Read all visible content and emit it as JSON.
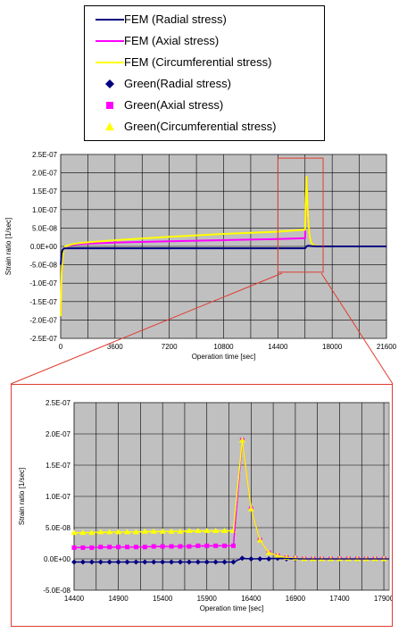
{
  "legend": {
    "entries": [
      {
        "label": "FEM (Radial stress)",
        "color": "#000080",
        "kind": "line"
      },
      {
        "label": "FEM (Axial stress)",
        "color": "#ff00ff",
        "kind": "line"
      },
      {
        "label": "FEM (Circumferential stress)",
        "color": "#ffff00",
        "kind": "line"
      },
      {
        "label": "Green(Radial stress)",
        "color": "#000080",
        "kind": "diamond"
      },
      {
        "label": "Green(Axial stress)",
        "color": "#ff00ff",
        "kind": "square"
      },
      {
        "label": "Green(Circumferential stress)",
        "color": "#ffff00",
        "kind": "triangle"
      }
    ]
  },
  "colors": {
    "plot_bg": "#c0c0c0",
    "grid": "#000000",
    "highlight": "#e03c31"
  },
  "chart_data": [
    {
      "type": "line",
      "title": "",
      "xlabel": "Operation time [sec]",
      "ylabel": "Strain ratio [1/sec]",
      "xlim": [
        0,
        21600
      ],
      "ylim": [
        -2.5e-07,
        2.5e-07
      ],
      "x_ticks": [
        0,
        3600,
        7200,
        10800,
        14400,
        18000,
        21600
      ],
      "x_tick_labels": [
        "0",
        "3600",
        "7200",
        "10800",
        "14400",
        "18000",
        "21600"
      ],
      "y_ticks": [
        -2.5e-07,
        -2e-07,
        -1.5e-07,
        -1e-07,
        -5e-08,
        0,
        5e-08,
        1e-07,
        1.5e-07,
        2e-07,
        2.5e-07
      ],
      "y_tick_labels": [
        "-2.5E-07",
        "-2.0E-07",
        "-1.5E-07",
        "-1.0E-07",
        "-5.0E-08",
        "0.0E+00",
        "5.0E-08",
        "1.0E-07",
        "1.5E-07",
        "2.0E-07",
        "2.5E-07"
      ],
      "grid": true,
      "highlight_box": {
        "x": [
          14400,
          17400
        ],
        "y": [
          -7e-08,
          2.4e-07
        ]
      },
      "series": [
        {
          "name": "FEM (Axial stress)",
          "color": "#ff00ff",
          "x": [
            0,
            60,
            120,
            200,
            300,
            500,
            800,
            1200,
            2000,
            4000,
            7200,
            10800,
            14400,
            16000,
            16200,
            16300,
            16400,
            16500,
            16600,
            16800,
            17000,
            18000,
            21600
          ],
          "y": [
            -1.9e-07,
            -8e-08,
            -3e-08,
            -1e-08,
            0,
            2e-09,
            4e-09,
            6e-09,
            8e-09,
            1.1e-08,
            1.4e-08,
            1.7e-08,
            2e-08,
            2.2e-08,
            2.2e-08,
            1.9e-07,
            8e-08,
            3e-08,
            1e-08,
            3e-09,
            1e-09,
            0,
            0
          ]
        },
        {
          "name": "FEM (Circumferential stress)",
          "color": "#ffff00",
          "x": [
            0,
            60,
            120,
            200,
            300,
            500,
            800,
            1200,
            2000,
            4000,
            7200,
            10800,
            14400,
            16000,
            16200,
            16300,
            16400,
            16500,
            16600,
            16800,
            17000,
            18000,
            21600
          ],
          "y": [
            -1.9e-07,
            -8e-08,
            -3e-08,
            -1e-08,
            0,
            3e-09,
            6e-09,
            9e-09,
            1.2e-08,
            1.8e-08,
            2.6e-08,
            3.4e-08,
            4e-08,
            4.5e-08,
            4.5e-08,
            1.9e-07,
            8e-08,
            3e-08,
            1e-08,
            3e-09,
            1e-09,
            0,
            0
          ]
        },
        {
          "name": "FEM (Radial stress)",
          "color": "#000080",
          "x": [
            0,
            60,
            120,
            200,
            300,
            500,
            1000,
            2000,
            4000,
            7200,
            10800,
            14400,
            16000,
            16200,
            16300,
            16400,
            16600,
            17000,
            18000,
            21600
          ],
          "y": [
            -5e-08,
            -2e-08,
            -1e-08,
            -6e-09,
            -5e-09,
            -5e-09,
            -5e-09,
            -5e-09,
            -5e-09,
            -5e-09,
            -5e-09,
            -5e-09,
            -5e-09,
            -5e-09,
            0,
            2e-09,
            1e-09,
            0,
            0,
            0
          ]
        }
      ]
    },
    {
      "type": "line",
      "title": "",
      "xlabel": "Operation time [sec]",
      "ylabel": "Strain ratio [1/sec]",
      "xlim": [
        14400,
        17960
      ],
      "ylim": [
        -5e-08,
        2.5e-07
      ],
      "x_ticks": [
        14400,
        14900,
        15400,
        15900,
        16400,
        16900,
        17400,
        17900
      ],
      "x_tick_labels": [
        "14400",
        "14900",
        "15400",
        "15900",
        "16400",
        "16900",
        "17400",
        "17900"
      ],
      "x_grid_step": 250,
      "y_ticks": [
        -5e-08,
        0,
        5e-08,
        1e-07,
        1.5e-07,
        2e-07,
        2.5e-07
      ],
      "y_tick_labels": [
        "-5.0E-08",
        "0.0E+00",
        "5.0E-08",
        "1.0E-07",
        "1.5E-07",
        "2.0E-07",
        "2.5E-07"
      ],
      "grid": true,
      "series": [
        {
          "name": "Green(Radial stress)",
          "color": "#000080",
          "marker": "diamond",
          "x": [
            14400,
            14500,
            14600,
            14700,
            14800,
            14900,
            15000,
            15100,
            15200,
            15300,
            15400,
            15500,
            15600,
            15700,
            15800,
            15900,
            16000,
            16100,
            16200,
            16300,
            16400,
            16500,
            16600,
            16700,
            16800,
            16900,
            17000,
            17100,
            17200,
            17300,
            17400,
            17500,
            17600,
            17700,
            17800,
            17900
          ],
          "y": [
            -5e-09,
            -5e-09,
            -5e-09,
            -5e-09,
            -5e-09,
            -5e-09,
            -5e-09,
            -5e-09,
            -5e-09,
            -5e-09,
            -5e-09,
            -5e-09,
            -5e-09,
            -5e-09,
            -5e-09,
            -5e-09,
            -5e-09,
            -5e-09,
            -5e-09,
            1e-09,
            0,
            0,
            0,
            1e-09,
            0,
            0,
            0,
            0,
            0,
            0,
            0,
            0,
            0,
            0,
            0,
            0
          ]
        },
        {
          "name": "Green(Axial stress)",
          "color": "#ff00ff",
          "marker": "square",
          "x": [
            14400,
            14500,
            14600,
            14700,
            14800,
            14900,
            15000,
            15100,
            15200,
            15300,
            15400,
            15500,
            15600,
            15700,
            15800,
            15900,
            16000,
            16100,
            16200,
            16300,
            16400,
            16500,
            16600,
            16700,
            16800,
            16900,
            17000,
            17100,
            17200,
            17300,
            17400,
            17500,
            17600,
            17700,
            17800,
            17900
          ],
          "y": [
            1.8e-08,
            1.8e-08,
            1.8e-08,
            1.9e-08,
            1.9e-08,
            1.9e-08,
            1.9e-08,
            1.9e-08,
            1.9e-08,
            2e-08,
            2e-08,
            2e-08,
            2e-08,
            2e-08,
            2.1e-08,
            2.1e-08,
            2.1e-08,
            2.1e-08,
            2.1e-08,
            1.9e-07,
            8e-08,
            3e-08,
            1e-08,
            5e-09,
            2e-09,
            1e-09,
            0,
            0,
            0,
            0,
            0,
            0,
            0,
            0,
            0,
            0
          ]
        },
        {
          "name": "Green(Circumferential stress)",
          "color": "#ffff00",
          "marker": "triangle",
          "x": [
            14400,
            14500,
            14600,
            14700,
            14800,
            14900,
            15000,
            15100,
            15200,
            15300,
            15400,
            15500,
            15600,
            15700,
            15800,
            15900,
            16000,
            16100,
            16200,
            16300,
            16400,
            16500,
            16600,
            16700,
            16800,
            16900,
            17000,
            17100,
            17200,
            17300,
            17400,
            17500,
            17600,
            17700,
            17800,
            17900
          ],
          "y": [
            4.2e-08,
            4.2e-08,
            4.2e-08,
            4.3e-08,
            4.3e-08,
            4.3e-08,
            4.3e-08,
            4.3e-08,
            4.4e-08,
            4.4e-08,
            4.4e-08,
            4.4e-08,
            4.4e-08,
            4.5e-08,
            4.5e-08,
            4.5e-08,
            4.5e-08,
            4.5e-08,
            4.5e-08,
            1.9e-07,
            8e-08,
            3e-08,
            1e-08,
            5e-09,
            2e-09,
            1e-09,
            0,
            0,
            0,
            0,
            0,
            0,
            0,
            0,
            0,
            0
          ]
        },
        {
          "name": "FEM (Axial stress)",
          "color": "#ff00ff",
          "marker": "none",
          "x": [
            14400,
            16200,
            16300,
            16400,
            16500,
            16600,
            16700,
            16800,
            17000,
            17960
          ],
          "y": [
            1.8e-08,
            2.1e-08,
            1.9e-07,
            8e-08,
            3e-08,
            1e-08,
            5e-09,
            2e-09,
            0,
            0
          ]
        },
        {
          "name": "FEM (Circumferential stress)",
          "color": "#ffff00",
          "marker": "none",
          "x": [
            14400,
            16200,
            16300,
            16400,
            16500,
            16600,
            16700,
            16800,
            17000,
            17960
          ],
          "y": [
            4.2e-08,
            4.5e-08,
            1.9e-07,
            8e-08,
            3e-08,
            1e-08,
            5e-09,
            2e-09,
            0,
            0
          ]
        },
        {
          "name": "FEM (Radial stress)",
          "color": "#000080",
          "marker": "none",
          "x": [
            14400,
            16200,
            16300,
            16400,
            16700,
            17000,
            17960
          ],
          "y": [
            -5e-09,
            -5e-09,
            1e-09,
            0,
            1e-09,
            0,
            0
          ]
        }
      ]
    }
  ]
}
